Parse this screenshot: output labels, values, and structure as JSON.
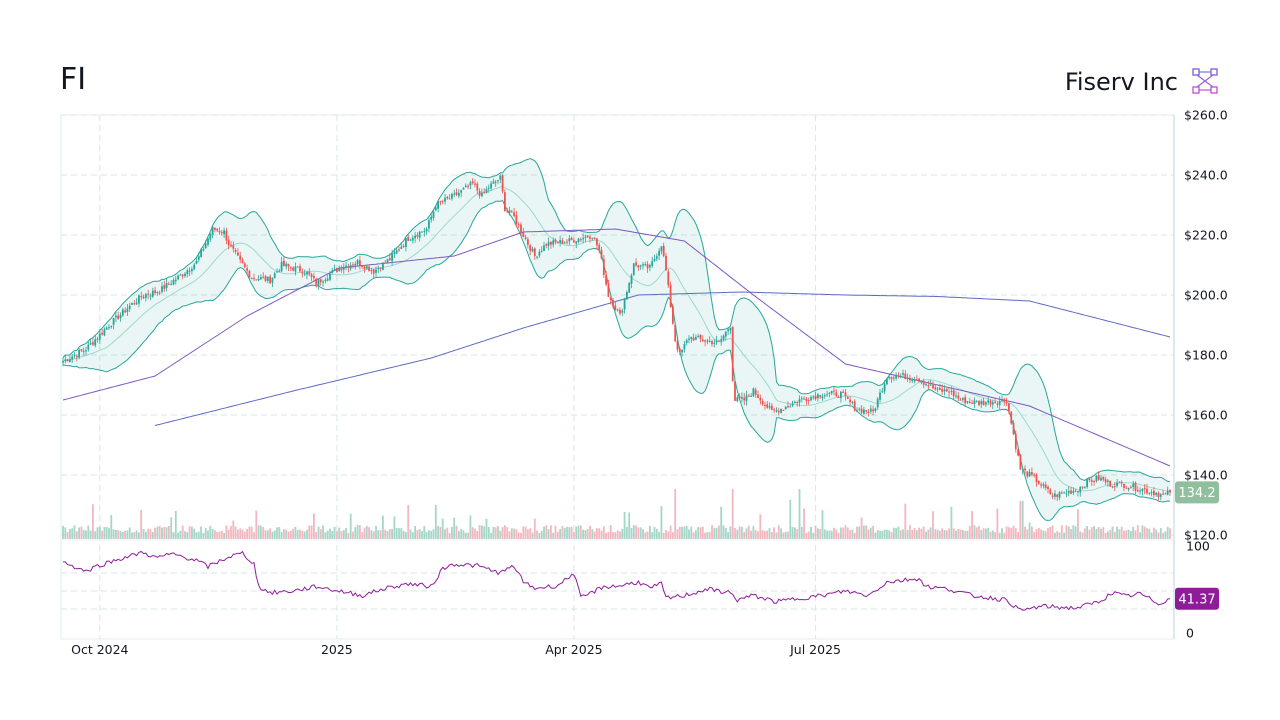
{
  "header": {
    "ticker": "FI",
    "company": "Fiserv Inc",
    "logo_icon": "network-nodes-icon"
  },
  "colors": {
    "up": "#26a69a",
    "down": "#ef5350",
    "vol_up": "#a5d6c8",
    "vol_down": "#f4b6bf",
    "bb": "#26a69a",
    "bb_fill": "rgba(38,166,154,0.10)",
    "ma50": "#7e57c2",
    "ma200": "#5c6bc0",
    "rsi": "#8e1c9a",
    "grid": "#d6e6ea",
    "price_tag": "#8fbf9c",
    "rsi_tag": "#8e1c9a"
  },
  "chart_data": {
    "type": "candlestick",
    "price_axis": {
      "ticks": [
        "$260.0",
        "$240.0",
        "$220.0",
        "$200.0",
        "$180.0",
        "$160.0",
        "$140.0",
        "$120.0"
      ],
      "values": [
        260,
        240,
        220,
        200,
        180,
        160,
        140,
        120
      ],
      "ylim": [
        120,
        260
      ]
    },
    "x_axis": {
      "ticks": [
        "Oct 2024",
        "2025",
        "Apr 2025",
        "Jul 2025"
      ],
      "tick_index": [
        16,
        119,
        222,
        327
      ]
    },
    "last_price": "134.2",
    "rsi": {
      "last": "41.37",
      "ticks": [
        "100",
        "0"
      ],
      "levels": [
        70,
        50,
        30
      ],
      "ylim": [
        0,
        100
      ]
    },
    "ohlc_anchors": [
      [
        0,
        178
      ],
      [
        10,
        182
      ],
      [
        20,
        190
      ],
      [
        30,
        197
      ],
      [
        35,
        200
      ],
      [
        40,
        201
      ],
      [
        43,
        202
      ],
      [
        52,
        207
      ],
      [
        58,
        211
      ],
      [
        65,
        222
      ],
      [
        70,
        221
      ],
      [
        72,
        217
      ],
      [
        77,
        211
      ],
      [
        82,
        206
      ],
      [
        90,
        205
      ],
      [
        95,
        210
      ],
      [
        100,
        209
      ],
      [
        105,
        208
      ],
      [
        110,
        204
      ],
      [
        120,
        209
      ],
      [
        128,
        211
      ],
      [
        135,
        208
      ],
      [
        142,
        212
      ],
      [
        150,
        219
      ],
      [
        158,
        222
      ],
      [
        162,
        230
      ],
      [
        170,
        233
      ],
      [
        178,
        237
      ],
      [
        182,
        233
      ],
      [
        185,
        236
      ],
      [
        190,
        239
      ],
      [
        192,
        229
      ],
      [
        196,
        226
      ],
      [
        200,
        220
      ],
      [
        205,
        213
      ],
      [
        210,
        217
      ],
      [
        220,
        218
      ],
      [
        225,
        219
      ],
      [
        230,
        220
      ],
      [
        233,
        215
      ],
      [
        237,
        200
      ],
      [
        242,
        193
      ],
      [
        248,
        210
      ],
      [
        255,
        209
      ],
      [
        260,
        217
      ],
      [
        262,
        208
      ],
      [
        266,
        185
      ],
      [
        268,
        180
      ],
      [
        272,
        186
      ],
      [
        278,
        185
      ],
      [
        285,
        184
      ],
      [
        290,
        190
      ],
      [
        291,
        172
      ],
      [
        292,
        165
      ],
      [
        296,
        165
      ],
      [
        300,
        168
      ],
      [
        308,
        161
      ],
      [
        315,
        163
      ],
      [
        320,
        165
      ],
      [
        330,
        167
      ],
      [
        338,
        167
      ],
      [
        345,
        162
      ],
      [
        352,
        161
      ],
      [
        358,
        173
      ],
      [
        365,
        173
      ],
      [
        372,
        172
      ],
      [
        380,
        168
      ],
      [
        385,
        168
      ],
      [
        390,
        165
      ],
      [
        398,
        164
      ],
      [
        410,
        165
      ],
      [
        416,
        142
      ],
      [
        422,
        139
      ],
      [
        430,
        133
      ],
      [
        440,
        135
      ],
      [
        446,
        138
      ],
      [
        450,
        139
      ],
      [
        455,
        137
      ],
      [
        460,
        137
      ],
      [
        465,
        136
      ],
      [
        470,
        135
      ],
      [
        475,
        134
      ],
      [
        478,
        133
      ],
      [
        481,
        134.2
      ]
    ],
    "ma200_anchors": [
      [
        40,
        156.5
      ],
      [
        100,
        168
      ],
      [
        160,
        179
      ],
      [
        200,
        189
      ],
      [
        250,
        200
      ],
      [
        295,
        201
      ],
      [
        340,
        200
      ],
      [
        380,
        199.5
      ],
      [
        420,
        198
      ],
      [
        481,
        186
      ]
    ],
    "ma50_anchors": [
      [
        0,
        165
      ],
      [
        40,
        173
      ],
      [
        80,
        193
      ],
      [
        120,
        209
      ],
      [
        170,
        213
      ],
      [
        200,
        221
      ],
      [
        240,
        222
      ],
      [
        270,
        218
      ],
      [
        300,
        200
      ],
      [
        340,
        177
      ],
      [
        380,
        170
      ],
      [
        420,
        163
      ],
      [
        481,
        143
      ]
    ],
    "rsi_anchors": [
      [
        0,
        83
      ],
      [
        4,
        78
      ],
      [
        10,
        72
      ],
      [
        15,
        78
      ],
      [
        25,
        86
      ],
      [
        35,
        93
      ],
      [
        40,
        87
      ],
      [
        48,
        91
      ],
      [
        58,
        84
      ],
      [
        63,
        77
      ],
      [
        72,
        88
      ],
      [
        78,
        92
      ],
      [
        83,
        80
      ],
      [
        85,
        55
      ],
      [
        90,
        48
      ],
      [
        100,
        50
      ],
      [
        110,
        55
      ],
      [
        120,
        50
      ],
      [
        130,
        45
      ],
      [
        140,
        53
      ],
      [
        150,
        58
      ],
      [
        160,
        55
      ],
      [
        165,
        75
      ],
      [
        170,
        80
      ],
      [
        180,
        78
      ],
      [
        190,
        70
      ],
      [
        196,
        78
      ],
      [
        200,
        60
      ],
      [
        205,
        53
      ],
      [
        215,
        56
      ],
      [
        222,
        70
      ],
      [
        225,
        42
      ],
      [
        235,
        55
      ],
      [
        240,
        55
      ],
      [
        250,
        60
      ],
      [
        255,
        53
      ],
      [
        260,
        58
      ],
      [
        262,
        42
      ],
      [
        270,
        45
      ],
      [
        280,
        52
      ],
      [
        290,
        48
      ],
      [
        293,
        40
      ],
      [
        300,
        45
      ],
      [
        310,
        38
      ],
      [
        320,
        42
      ],
      [
        330,
        45
      ],
      [
        340,
        50
      ],
      [
        350,
        45
      ],
      [
        358,
        60
      ],
      [
        365,
        62
      ],
      [
        372,
        64
      ],
      [
        375,
        55
      ],
      [
        385,
        52
      ],
      [
        395,
        45
      ],
      [
        410,
        40
      ],
      [
        416,
        28
      ],
      [
        425,
        33
      ],
      [
        440,
        31
      ],
      [
        450,
        38
      ],
      [
        456,
        48
      ],
      [
        462,
        44
      ],
      [
        468,
        47
      ],
      [
        476,
        36
      ],
      [
        481,
        41.37
      ]
    ],
    "n_bars": 482
  }
}
